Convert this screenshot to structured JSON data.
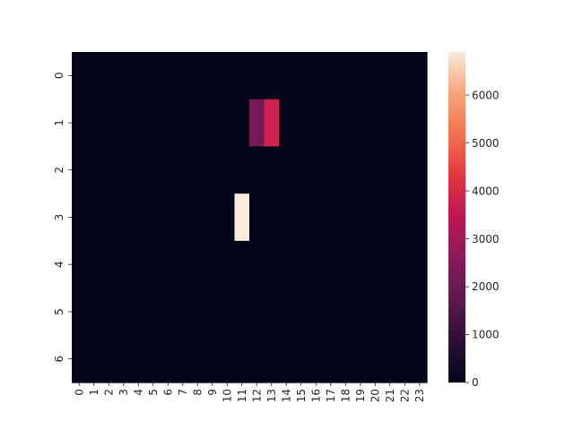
{
  "chart_data": {
    "type": "heatmap",
    "title": "",
    "xlabel": "",
    "ylabel": "",
    "rows": [
      "0",
      "1",
      "2",
      "3",
      "4",
      "5",
      "6"
    ],
    "columns": [
      "0",
      "1",
      "2",
      "3",
      "4",
      "5",
      "6",
      "7",
      "8",
      "9",
      "10",
      "11",
      "12",
      "13",
      "14",
      "15",
      "16",
      "17",
      "18",
      "19",
      "20",
      "21",
      "22",
      "23"
    ],
    "values": [
      [
        0,
        0,
        0,
        0,
        0,
        0,
        0,
        0,
        0,
        0,
        0,
        0,
        0,
        0,
        0,
        0,
        0,
        0,
        0,
        0,
        0,
        0,
        0,
        0
      ],
      [
        0,
        0,
        0,
        0,
        0,
        0,
        0,
        0,
        0,
        0,
        0,
        0,
        2200,
        3800,
        0,
        0,
        0,
        0,
        0,
        0,
        0,
        0,
        0,
        0
      ],
      [
        0,
        0,
        0,
        0,
        0,
        0,
        0,
        0,
        0,
        0,
        0,
        0,
        0,
        0,
        0,
        0,
        0,
        0,
        0,
        0,
        0,
        0,
        0,
        0
      ],
      [
        0,
        0,
        0,
        0,
        0,
        0,
        0,
        0,
        0,
        0,
        0,
        6900,
        0,
        0,
        0,
        0,
        0,
        0,
        0,
        0,
        0,
        0,
        0,
        0
      ],
      [
        0,
        0,
        0,
        0,
        0,
        0,
        0,
        0,
        0,
        0,
        0,
        0,
        0,
        0,
        0,
        0,
        0,
        0,
        0,
        0,
        0,
        0,
        0,
        0
      ],
      [
        0,
        0,
        0,
        0,
        0,
        0,
        0,
        0,
        0,
        0,
        0,
        0,
        0,
        0,
        0,
        0,
        0,
        0,
        0,
        0,
        0,
        0,
        0,
        0
      ],
      [
        0,
        0,
        0,
        0,
        0,
        0,
        0,
        0,
        0,
        0,
        0,
        0,
        0,
        0,
        0,
        0,
        0,
        0,
        0,
        0,
        0,
        0,
        0,
        0
      ]
    ],
    "vmin": 0,
    "vmax": 6900,
    "colormap": "rocket",
    "colorbar_ticks": [
      0,
      1000,
      2000,
      3000,
      4000,
      5000,
      6000
    ],
    "colorbar_tick_labels": [
      "0",
      "1000",
      "2000",
      "3000",
      "4000",
      "5000",
      "6000"
    ],
    "grid": false,
    "colors": {
      "low": "#03051a",
      "high": "#faebdd",
      "text": "#262626"
    }
  }
}
